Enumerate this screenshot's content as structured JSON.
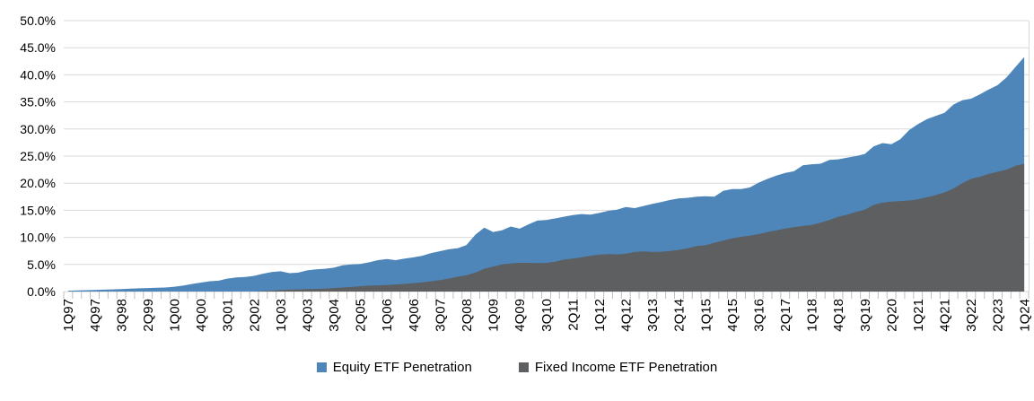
{
  "chart_data": {
    "type": "area",
    "title": "",
    "xlabel": "",
    "ylabel": "",
    "ylim": [
      0,
      50
    ],
    "ytick_step": 5,
    "y_tick_labels": [
      "0.0%",
      "5.0%",
      "10.0%",
      "15.0%",
      "20.0%",
      "25.0%",
      "30.0%",
      "35.0%",
      "40.0%",
      "45.0%",
      "50.0%"
    ],
    "x_label_every": 3,
    "grid": "horizontal",
    "legend_position": "bottom-center",
    "categories": [
      "1Q97",
      "2Q97",
      "3Q97",
      "4Q97",
      "1Q98",
      "2Q98",
      "3Q98",
      "4Q98",
      "1Q99",
      "2Q99",
      "3Q99",
      "4Q99",
      "1Q00",
      "2Q00",
      "3Q00",
      "4Q00",
      "1Q01",
      "2Q01",
      "3Q01",
      "4Q01",
      "1Q02",
      "2Q02",
      "3Q02",
      "4Q02",
      "1Q03",
      "2Q03",
      "3Q03",
      "4Q03",
      "1Q04",
      "2Q04",
      "3Q04",
      "4Q04",
      "1Q05",
      "2Q05",
      "3Q05",
      "4Q05",
      "1Q06",
      "2Q06",
      "3Q06",
      "4Q06",
      "1Q07",
      "2Q07",
      "3Q07",
      "4Q07",
      "1Q08",
      "2Q08",
      "3Q08",
      "4Q08",
      "1Q09",
      "2Q09",
      "3Q09",
      "4Q09",
      "1Q10",
      "2Q10",
      "3Q10",
      "4Q10",
      "1Q11",
      "2Q11",
      "3Q11",
      "4Q11",
      "1Q12",
      "2Q12",
      "3Q12",
      "4Q12",
      "1Q13",
      "2Q13",
      "3Q13",
      "4Q13",
      "1Q14",
      "2Q14",
      "3Q14",
      "4Q14",
      "1Q15",
      "2Q15",
      "3Q15",
      "4Q15",
      "1Q16",
      "2Q16",
      "3Q16",
      "4Q16",
      "1Q17",
      "2Q17",
      "3Q17",
      "4Q17",
      "1Q18",
      "2Q18",
      "3Q18",
      "4Q18",
      "1Q19",
      "2Q19",
      "3Q19",
      "4Q19",
      "1Q20",
      "2Q20",
      "3Q20",
      "4Q20",
      "1Q21",
      "2Q21",
      "3Q21",
      "4Q21",
      "1Q22",
      "2Q22",
      "3Q22",
      "4Q22",
      "1Q23",
      "2Q23",
      "3Q23",
      "4Q23",
      "1Q24"
    ],
    "series": [
      {
        "name": "Equity ETF Penetration",
        "color": "#4E86BA",
        "values": [
          0.15,
          0.2,
          0.25,
          0.3,
          0.35,
          0.4,
          0.45,
          0.55,
          0.6,
          0.65,
          0.7,
          0.75,
          0.9,
          1.1,
          1.4,
          1.65,
          1.9,
          2.0,
          2.4,
          2.6,
          2.7,
          2.9,
          3.3,
          3.6,
          3.75,
          3.4,
          3.5,
          3.9,
          4.1,
          4.2,
          4.4,
          4.85,
          5.0,
          5.1,
          5.4,
          5.8,
          6.0,
          5.8,
          6.1,
          6.3,
          6.6,
          7.1,
          7.45,
          7.8,
          8.0,
          8.6,
          10.5,
          11.8,
          11.0,
          11.3,
          12.0,
          11.6,
          12.4,
          13.1,
          13.2,
          13.5,
          13.8,
          14.1,
          14.3,
          14.2,
          14.5,
          14.9,
          15.1,
          15.6,
          15.4,
          15.8,
          16.2,
          16.5,
          16.9,
          17.2,
          17.3,
          17.5,
          17.6,
          17.5,
          18.6,
          18.9,
          18.9,
          19.2,
          20.1,
          20.8,
          21.4,
          21.9,
          22.2,
          23.3,
          23.5,
          23.6,
          24.3,
          24.4,
          24.7,
          25.0,
          25.4,
          26.8,
          27.4,
          27.2,
          28.1,
          29.8,
          30.9,
          31.8,
          32.4,
          33.0,
          34.5,
          35.3,
          35.6,
          36.4,
          37.3,
          38.1,
          39.5,
          41.4,
          43.3
        ]
      },
      {
        "name": "Fixed Income ETF Penetration",
        "color": "#5D5F61",
        "values": [
          0,
          0,
          0,
          0,
          0,
          0,
          0,
          0,
          0,
          0,
          0,
          0,
          0,
          0,
          0,
          0,
          0,
          0,
          0,
          0,
          0,
          0,
          0.1,
          0.15,
          0.3,
          0.35,
          0.4,
          0.45,
          0.5,
          0.55,
          0.65,
          0.75,
          0.85,
          1.0,
          1.1,
          1.15,
          1.2,
          1.3,
          1.4,
          1.55,
          1.7,
          1.9,
          2.1,
          2.4,
          2.75,
          3.0,
          3.5,
          4.2,
          4.6,
          5.0,
          5.2,
          5.3,
          5.3,
          5.25,
          5.3,
          5.5,
          5.9,
          6.1,
          6.3,
          6.6,
          6.8,
          6.9,
          6.85,
          7.0,
          7.3,
          7.4,
          7.3,
          7.35,
          7.5,
          7.7,
          8.0,
          8.4,
          8.55,
          9.0,
          9.4,
          9.8,
          10.1,
          10.3,
          10.6,
          11.0,
          11.3,
          11.6,
          11.9,
          12.1,
          12.3,
          12.7,
          13.2,
          13.8,
          14.2,
          14.7,
          15.1,
          16.0,
          16.4,
          16.6,
          16.7,
          16.8,
          17.0,
          17.4,
          17.8,
          18.3,
          19.0,
          20.0,
          20.8,
          21.2,
          21.7,
          22.1,
          22.5,
          23.2,
          23.6
        ]
      }
    ],
    "colors": {
      "gridline": "#D9D9D9",
      "tick": "#BFBFBF",
      "axis_text": "#000000",
      "background": "#FFFFFF"
    }
  }
}
